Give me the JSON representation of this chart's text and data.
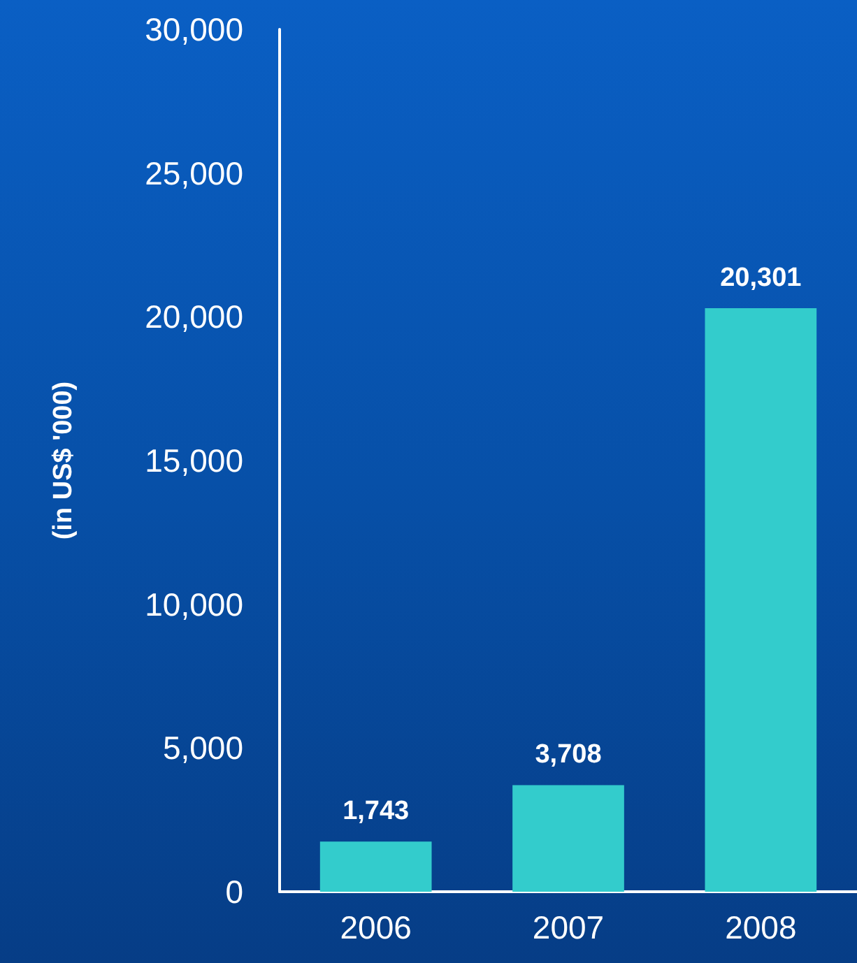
{
  "chart_data": {
    "type": "bar",
    "ylabel": "(in US$ '000)",
    "categories": [
      "2006",
      "2007",
      "2008"
    ],
    "values": [
      1743,
      3708,
      20301
    ],
    "value_labels": [
      "1,743",
      "3,708",
      "20,301"
    ],
    "color": "#33cccc",
    "ylim": [
      0,
      30000
    ],
    "yticks": [
      0,
      {
        "value": 5000,
        "label": "5,000"
      },
      {
        "value": 10000,
        "label": "10,000"
      },
      {
        "value": 15000,
        "label": "15,000"
      },
      {
        "value": 20000,
        "label": "20,000"
      },
      {
        "value": 25000,
        "label": "25,000"
      },
      {
        "value": 30000,
        "label": "30,000"
      }
    ],
    "grid": false
  }
}
